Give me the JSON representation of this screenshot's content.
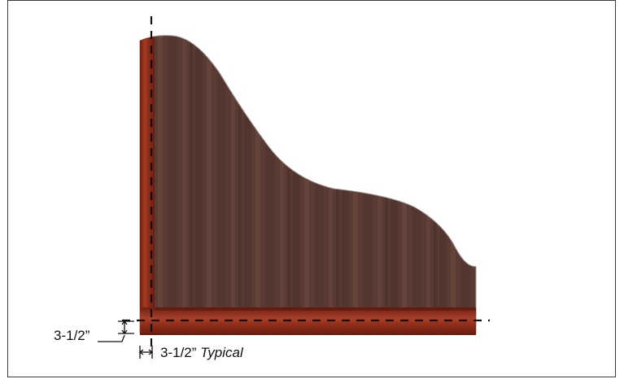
{
  "dimensions": {
    "left_label": "3-1/2”",
    "bottom_label": "3-1/2”",
    "bottom_suffix": "Typical"
  },
  "colors": {
    "panel_fill": "#5a3b34",
    "panel_stripe_dark": "#4b302b",
    "panel_stripe_light": "#6a4840",
    "edge_banding": "#8e2a18",
    "edge_banding_highlight": "#b2452a",
    "dashed_line": "#111111",
    "frame_border": "#3a3a3a"
  }
}
